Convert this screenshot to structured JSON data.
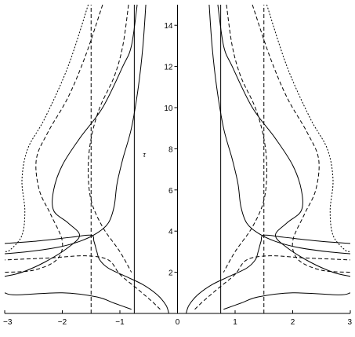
{
  "chart_data": {
    "type": "line",
    "title": "",
    "xlabel": "",
    "ylabel": "τ",
    "xlim": [
      -3,
      3
    ],
    "ylim": [
      0,
      15
    ],
    "grid": false,
    "legend": "none",
    "x_ticks": [
      -3,
      -2,
      -1,
      0,
      1,
      2,
      3
    ],
    "y_ticks": [
      2,
      4,
      6,
      8,
      10,
      12,
      14
    ],
    "x_tick_labels": [
      "−3",
      "−2",
      "−1",
      "0",
      "1",
      "2",
      "3"
    ],
    "y_tick_labels": [
      "2",
      "4",
      "6",
      "8",
      "10",
      "12",
      "14"
    ],
    "colors": {
      "line": "#000000",
      "background": "#ffffff"
    },
    "series": [
      {
        "style": "dashed",
        "x": [
          -1.5,
          -1.5
        ],
        "y": [
          0,
          15
        ]
      },
      {
        "style": "dashed",
        "x": [
          1.5,
          1.5
        ],
        "y": [
          0,
          15
        ]
      },
      {
        "style": "solid",
        "x": [
          -0.75,
          -0.75
        ],
        "y": [
          0,
          15
        ]
      },
      {
        "style": "solid",
        "x": [
          0.75,
          0.75
        ],
        "y": [
          0,
          15
        ]
      },
      {
        "style": "solid",
        "x": [
          -0.15,
          -0.2,
          -0.35,
          -0.6,
          -0.9,
          -1.2,
          -1.35,
          -1.4,
          -1.45,
          -1.5,
          -1.85,
          -2.5,
          -3.0
        ],
        "y": [
          0,
          0.4,
          0.9,
          1.4,
          1.8,
          2.2,
          2.6,
          3.0,
          3.5,
          3.8,
          3.7,
          3.5,
          3.4
        ]
      },
      {
        "style": "solid",
        "x": [
          0.15,
          0.2,
          0.35,
          0.6,
          0.9,
          1.2,
          1.35,
          1.4,
          1.45,
          1.5,
          1.85,
          2.5,
          3.0
        ],
        "y": [
          0,
          0.4,
          0.9,
          1.4,
          1.8,
          2.2,
          2.6,
          3.0,
          3.5,
          3.8,
          3.7,
          3.5,
          3.4
        ]
      },
      {
        "style": "solid",
        "x": [
          -0.8,
          -1.1,
          -1.4,
          -2.0,
          -2.8,
          -3.0
        ],
        "y": [
          0.2,
          0.5,
          0.8,
          1.0,
          0.9,
          1.0
        ]
      },
      {
        "style": "solid",
        "x": [
          0.8,
          1.1,
          1.4,
          2.0,
          2.8,
          3.0
        ],
        "y": [
          0.2,
          0.5,
          0.8,
          1.0,
          0.9,
          1.0
        ]
      },
      {
        "style": "solid",
        "x": [
          -0.55,
          -0.6,
          -0.68,
          -0.8,
          -0.95,
          -1.05,
          -1.1,
          -1.2,
          -1.4,
          -1.7,
          -2.1,
          -2.6,
          -3.0
        ],
        "y": [
          15,
          13,
          11,
          9,
          7.5,
          6.3,
          5.2,
          4.4,
          3.9,
          3.5,
          3.2,
          3.0,
          2.9
        ]
      },
      {
        "style": "solid",
        "x": [
          0.55,
          0.6,
          0.68,
          0.8,
          0.95,
          1.05,
          1.1,
          1.2,
          1.4,
          1.7,
          2.1,
          2.6,
          3.0
        ],
        "y": [
          15,
          13,
          11,
          9,
          7.5,
          6.3,
          5.2,
          4.4,
          3.9,
          3.5,
          3.2,
          3.0,
          2.9
        ]
      },
      {
        "style": "solid",
        "x": [
          -0.7,
          -0.8,
          -0.95,
          -1.3,
          -1.7,
          -2.0,
          -2.15,
          -2.15,
          -1.9,
          -1.7,
          -1.9,
          -2.3,
          -2.7,
          -3.0
        ],
        "y": [
          15,
          13,
          12,
          10,
          8.5,
          7.2,
          6.0,
          5.0,
          4.4,
          3.8,
          3.2,
          2.5,
          2.0,
          1.8
        ]
      },
      {
        "style": "solid",
        "x": [
          0.7,
          0.8,
          0.95,
          1.3,
          1.7,
          2.0,
          2.15,
          2.15,
          1.9,
          1.7,
          1.9,
          2.3,
          2.7,
          3.0
        ],
        "y": [
          15,
          13,
          12,
          10,
          8.5,
          7.2,
          6.0,
          5.0,
          4.4,
          3.8,
          3.2,
          2.5,
          2.0,
          1.8
        ]
      },
      {
        "style": "dashed",
        "x": [
          -0.85,
          -0.95,
          -1.1,
          -1.35,
          -1.5,
          -1.55,
          -1.5,
          -1.3,
          -1.0,
          -0.8
        ],
        "y": [
          15,
          13,
          11.5,
          10,
          8.5,
          7,
          5.5,
          4.2,
          3.0,
          2.0
        ]
      },
      {
        "style": "dashed",
        "x": [
          0.85,
          0.95,
          1.1,
          1.35,
          1.5,
          1.55,
          1.5,
          1.3,
          1.0,
          0.8
        ],
        "y": [
          15,
          13,
          11.5,
          10,
          8.5,
          7,
          5.5,
          4.2,
          3.0,
          2.0
        ]
      },
      {
        "style": "dashed",
        "x": [
          -1.3,
          -1.6,
          -1.9,
          -2.25,
          -2.45,
          -2.4,
          -2.2,
          -2.0,
          -2.1,
          -2.5,
          -3.0
        ],
        "y": [
          15,
          12.5,
          10.5,
          8.8,
          7.5,
          6.0,
          4.8,
          3.5,
          2.6,
          2.1,
          2.0
        ]
      },
      {
        "style": "dashed",
        "x": [
          1.3,
          1.6,
          1.9,
          2.25,
          2.45,
          2.4,
          2.2,
          2.0,
          2.1,
          2.5,
          3.0
        ],
        "y": [
          15,
          12.5,
          10.5,
          8.8,
          7.5,
          6.0,
          4.8,
          3.5,
          2.6,
          2.1,
          2.0
        ]
      },
      {
        "style": "dotted",
        "x": [
          -1.55,
          -1.9,
          -2.3,
          -2.6,
          -2.7,
          -2.65,
          -2.7,
          -2.9,
          -3.0
        ],
        "y": [
          15,
          12.0,
          9.5,
          8.0,
          6.5,
          5.0,
          3.8,
          3.1,
          3.0
        ]
      },
      {
        "style": "dotted",
        "x": [
          1.55,
          1.9,
          2.3,
          2.6,
          2.7,
          2.65,
          2.7,
          2.9,
          3.0
        ],
        "y": [
          15,
          12.0,
          9.5,
          8.0,
          6.5,
          5.0,
          3.8,
          3.1,
          3.0
        ]
      },
      {
        "style": "dashed",
        "x": [
          -0.3,
          -0.45,
          -0.7,
          -1.0,
          -1.2,
          -1.6,
          -2.2,
          -3.0
        ],
        "y": [
          0.2,
          0.6,
          1.2,
          1.9,
          2.6,
          2.8,
          2.7,
          2.6
        ]
      },
      {
        "style": "dashed",
        "x": [
          0.3,
          0.45,
          0.7,
          1.0,
          1.2,
          1.6,
          2.2,
          3.0
        ],
        "y": [
          0.2,
          0.6,
          1.2,
          1.9,
          2.6,
          2.8,
          2.7,
          2.6
        ]
      }
    ]
  }
}
